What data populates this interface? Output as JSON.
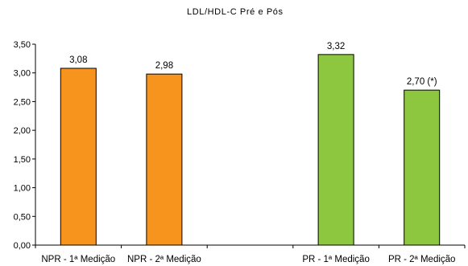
{
  "chart_data": {
    "type": "bar",
    "title": "LDL/HDL-C  Pré e Pós",
    "xlabel": "",
    "ylabel": "",
    "ylim": [
      0,
      3.5
    ],
    "yticks": [
      "0,00",
      "0,50",
      "1,00",
      "1,50",
      "2,00",
      "2,50",
      "3,00",
      "3,50"
    ],
    "grid": false,
    "categories": [
      "NPR - 1ª Medição",
      "NPR - 2ª Medição",
      "",
      "PR - 1ª Medição",
      "PR - 2ª Medição"
    ],
    "values": [
      3.08,
      2.98,
      null,
      3.32,
      2.7
    ],
    "data_labels": [
      "3,08",
      "2,98",
      "",
      "3,32",
      "2,70 (*)"
    ],
    "colors": [
      "#F7941D",
      "#F7941D",
      null,
      "#8DC63F",
      "#8DC63F"
    ]
  }
}
